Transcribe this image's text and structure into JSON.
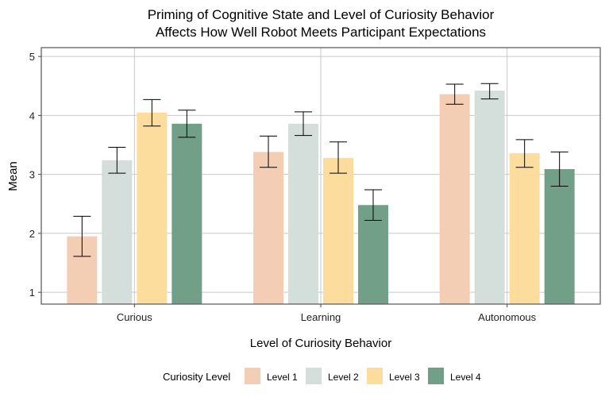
{
  "chart_data": {
    "type": "bar",
    "title_lines": [
      "Priming of Cognitive State and Level of Curiosity Behavior",
      "Affects How Well Robot Meets Participant Expectations"
    ],
    "xlabel": "Level of Curiosity Behavior",
    "ylabel": "Mean",
    "ylim": [
      0.8,
      5.15
    ],
    "yticks": [
      1,
      2,
      3,
      4,
      5
    ],
    "grid": true,
    "legend_position": "bottom",
    "legend_title": "Curiosity Level",
    "categories": [
      "Curious",
      "Learning",
      "Autonomous"
    ],
    "series": [
      {
        "name": "Level 1",
        "color": "#F4CDB5",
        "values": [
          1.95,
          3.38,
          4.36
        ],
        "err_low": [
          1.61,
          3.12,
          4.19
        ],
        "err_high": [
          2.29,
          3.65,
          4.53
        ]
      },
      {
        "name": "Level 2",
        "color": "#D4DEDB",
        "values": [
          3.24,
          3.86,
          4.42
        ],
        "err_low": [
          3.02,
          3.66,
          4.28
        ],
        "err_high": [
          3.46,
          4.06,
          4.54
        ]
      },
      {
        "name": "Level 3",
        "color": "#FDDD9E",
        "values": [
          4.05,
          3.28,
          3.36
        ],
        "err_low": [
          3.82,
          3.02,
          3.12
        ],
        "err_high": [
          4.27,
          3.55,
          3.59
        ]
      },
      {
        "name": "Level 4",
        "color": "#719F87",
        "values": [
          3.86,
          2.48,
          3.09
        ],
        "err_low": [
          3.63,
          2.22,
          2.8
        ],
        "err_high": [
          4.09,
          2.74,
          3.38
        ]
      }
    ]
  }
}
